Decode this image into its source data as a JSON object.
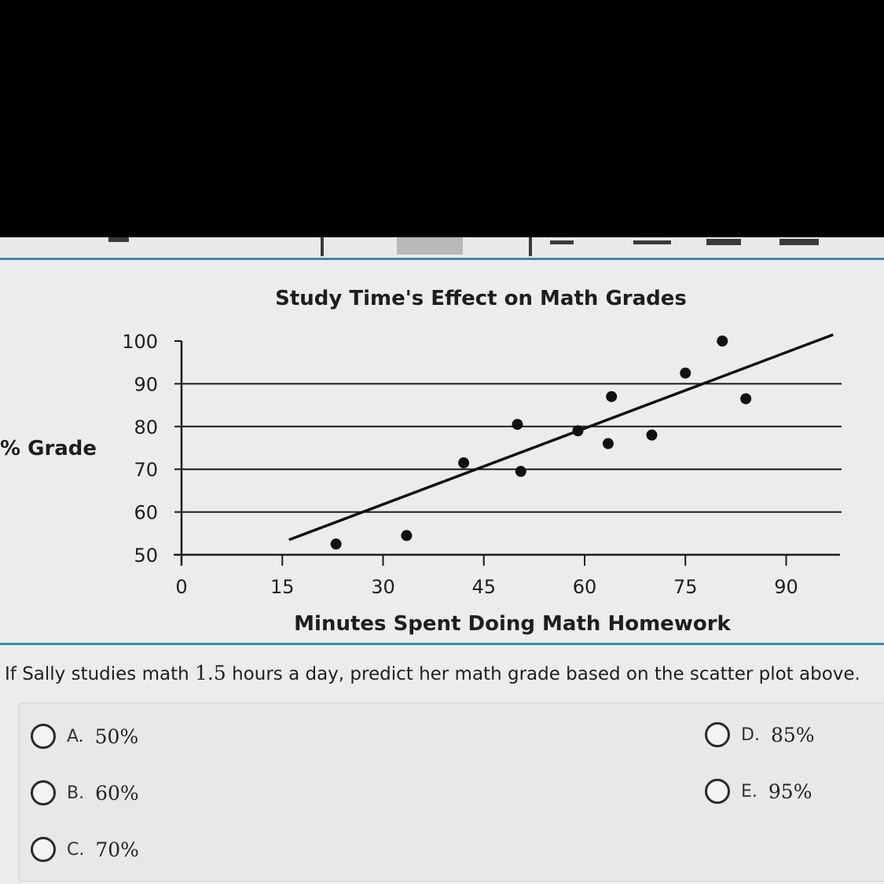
{
  "chart_data": {
    "type": "scatter",
    "title": "Study Time's Effect on Math Grades",
    "xlabel": "Minutes Spent Doing Math Homework",
    "ylabel": "% Grade",
    "xlim": [
      0,
      98
    ],
    "ylim": [
      50,
      101
    ],
    "x_ticks": [
      "0",
      "15",
      "30",
      "45",
      "60",
      "75",
      "90"
    ],
    "y_ticks": [
      "100",
      "90",
      "80",
      "70",
      "60",
      "50"
    ],
    "grid": "horizontal",
    "points": [
      {
        "x": 23,
        "y": 52.5
      },
      {
        "x": 33.5,
        "y": 54.5
      },
      {
        "x": 42,
        "y": 71.5
      },
      {
        "x": 50,
        "y": 80.5
      },
      {
        "x": 50.5,
        "y": 69.5
      },
      {
        "x": 59,
        "y": 79
      },
      {
        "x": 63.5,
        "y": 76
      },
      {
        "x": 64,
        "y": 87
      },
      {
        "x": 70,
        "y": 78
      },
      {
        "x": 75,
        "y": 92.5
      },
      {
        "x": 80.5,
        "y": 100
      },
      {
        "x": 84,
        "y": 86.5
      }
    ],
    "trend_line": {
      "x1": 16,
      "y1": 53.5,
      "x2": 97,
      "y2": 101.5
    }
  },
  "question": {
    "before": "If Sally studies math ",
    "number": "1.5",
    "after": " hours a day, predict her math grade based on the scatter plot above."
  },
  "choices": [
    {
      "letter": "A.",
      "value": "50%"
    },
    {
      "letter": "B.",
      "value": "60%"
    },
    {
      "letter": "C.",
      "value": "70%"
    },
    {
      "letter": "D.",
      "value": "85%"
    },
    {
      "letter": "E.",
      "value": "95%"
    }
  ]
}
